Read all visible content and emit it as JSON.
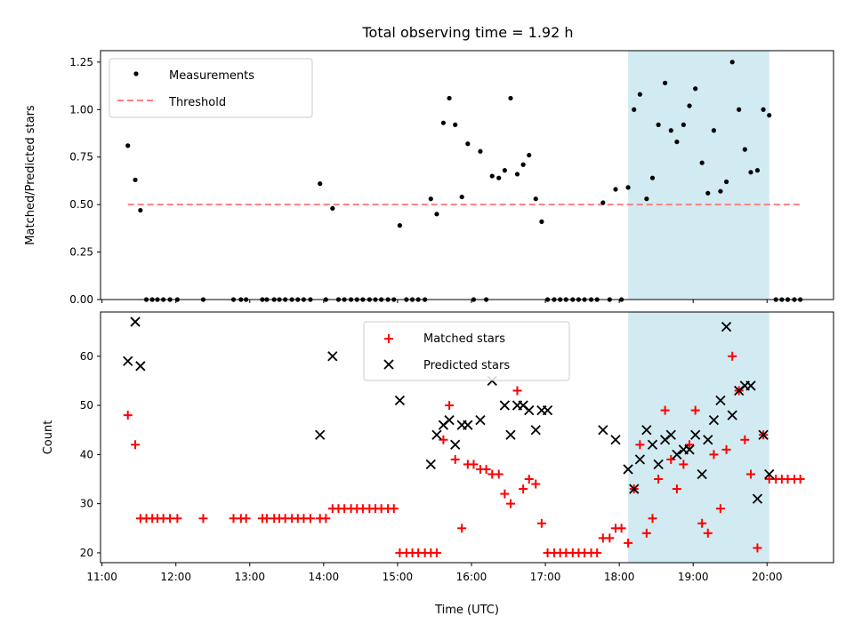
{
  "title": "Total observing time = 1.92 h",
  "colors": {
    "shade": "#add8e6",
    "measurement": "#000000",
    "threshold": "#ff7f7f",
    "matched": "#ff0000",
    "predicted": "#000000"
  },
  "icons": {
    "measurement_marker": "dot",
    "matched_marker": "plus",
    "predicted_marker": "x-cross"
  },
  "chart_data": [
    {
      "type": "scatter",
      "ylabel": "Matched/Predicted stars",
      "xlim": [
        10.98,
        20.9
      ],
      "ylim": [
        0,
        1.31
      ],
      "yticks": [
        0.0,
        0.25,
        0.5,
        0.75,
        1.0,
        1.25
      ],
      "ytick_labels": [
        "0.00",
        "0.25",
        "0.50",
        "0.75",
        "1.00",
        "1.25"
      ],
      "xticks": [
        11,
        12,
        13,
        14,
        15,
        16,
        17,
        18,
        19,
        20
      ],
      "show_xtick_labels": false,
      "legend_position": "upper left",
      "shaded_interval": [
        18.12,
        20.03
      ],
      "threshold": {
        "name": "Threshold",
        "y": 0.5,
        "x_range": [
          11.35,
          20.45
        ],
        "style": "dashed"
      },
      "series": [
        {
          "name": "Measurements",
          "marker": "dot",
          "x": [
            11.35,
            11.45,
            11.52,
            11.6,
            11.68,
            11.75,
            11.83,
            11.92,
            12.02,
            12.37,
            12.78,
            12.88,
            12.95,
            13.17,
            13.23,
            13.33,
            13.4,
            13.48,
            13.57,
            13.65,
            13.73,
            13.82,
            13.95,
            14.03,
            14.12,
            14.2,
            14.28,
            14.37,
            14.45,
            14.53,
            14.62,
            14.7,
            14.78,
            14.87,
            14.95,
            15.03,
            15.12,
            15.2,
            15.28,
            15.37,
            15.45,
            15.53,
            15.62,
            15.7,
            15.78,
            15.87,
            15.95,
            16.03,
            16.12,
            16.2,
            16.28,
            16.37,
            16.45,
            16.53,
            16.62,
            16.7,
            16.78,
            16.87,
            16.95,
            17.03,
            17.12,
            17.2,
            17.28,
            17.37,
            17.45,
            17.53,
            17.62,
            17.7,
            17.78,
            17.87,
            17.95,
            18.03,
            18.12,
            18.2,
            18.28,
            18.37,
            18.45,
            18.53,
            18.62,
            18.7,
            18.78,
            18.87,
            18.95,
            19.03,
            19.12,
            19.2,
            19.28,
            19.37,
            19.45,
            19.53,
            19.62,
            19.7,
            19.78,
            19.87,
            19.95,
            20.03,
            20.12,
            20.2,
            20.28,
            20.37,
            20.45
          ],
          "y": [
            0.81,
            0.63,
            0.47,
            0.0,
            0.0,
            0.0,
            0.0,
            0.0,
            0.0,
            0.0,
            0.0,
            0.0,
            0.0,
            0.0,
            0.0,
            0.0,
            0.0,
            0.0,
            0.0,
            0.0,
            0.0,
            0.0,
            0.61,
            0.0,
            0.48,
            0.0,
            0.0,
            0.0,
            0.0,
            0.0,
            0.0,
            0.0,
            0.0,
            0.0,
            0.0,
            0.39,
            0.0,
            0.0,
            0.0,
            0.0,
            0.53,
            0.45,
            0.93,
            1.06,
            0.92,
            0.54,
            0.82,
            0.0,
            0.78,
            0.0,
            0.65,
            0.64,
            0.68,
            1.06,
            0.66,
            0.71,
            0.76,
            0.53,
            0.41,
            0.0,
            0.0,
            0.0,
            0.0,
            0.0,
            0.0,
            0.0,
            0.0,
            0.0,
            0.51,
            0.0,
            0.58,
            0.0,
            0.59,
            1.0,
            1.08,
            0.53,
            0.64,
            0.92,
            1.14,
            0.89,
            0.83,
            0.92,
            1.02,
            1.11,
            0.72,
            0.56,
            0.89,
            0.57,
            0.62,
            1.25,
            1.0,
            0.79,
            0.67,
            0.68,
            1.0,
            0.97,
            0.0,
            0.0,
            0.0,
            0.0,
            0.0
          ]
        }
      ]
    },
    {
      "type": "scatter",
      "xlabel": "Time (UTC)",
      "ylabel": "Count",
      "xlim": [
        10.98,
        20.9
      ],
      "ylim": [
        18,
        69
      ],
      "yticks": [
        20,
        30,
        40,
        50,
        60
      ],
      "ytick_labels": [
        "20",
        "30",
        "40",
        "50",
        "60"
      ],
      "xticks": [
        11,
        12,
        13,
        14,
        15,
        16,
        17,
        18,
        19,
        20
      ],
      "xtick_labels": [
        "11:00",
        "12:00",
        "13:00",
        "14:00",
        "15:00",
        "16:00",
        "17:00",
        "18:00",
        "19:00",
        "20:00"
      ],
      "legend_position": "upper center",
      "shaded_interval": [
        18.12,
        20.03
      ],
      "series": [
        {
          "name": "Matched stars",
          "marker": "plus",
          "x": [
            11.35,
            11.45,
            11.52,
            11.6,
            11.68,
            11.75,
            11.83,
            11.92,
            12.02,
            12.37,
            12.78,
            12.88,
            12.95,
            13.17,
            13.23,
            13.33,
            13.4,
            13.48,
            13.57,
            13.65,
            13.73,
            13.82,
            13.95,
            14.03,
            14.12,
            14.2,
            14.28,
            14.37,
            14.45,
            14.53,
            14.62,
            14.7,
            14.78,
            14.87,
            14.95,
            15.03,
            15.12,
            15.2,
            15.28,
            15.37,
            15.45,
            15.53,
            15.62,
            15.7,
            15.78,
            15.87,
            15.95,
            16.03,
            16.12,
            16.2,
            16.28,
            16.37,
            16.45,
            16.53,
            16.62,
            16.7,
            16.78,
            16.87,
            16.95,
            17.03,
            17.12,
            17.2,
            17.28,
            17.37,
            17.45,
            17.53,
            17.62,
            17.7,
            17.78,
            17.87,
            17.95,
            18.03,
            18.12,
            18.2,
            18.28,
            18.37,
            18.45,
            18.53,
            18.62,
            18.7,
            18.78,
            18.87,
            18.95,
            19.03,
            19.12,
            19.2,
            19.28,
            19.37,
            19.45,
            19.53,
            19.62,
            19.7,
            19.78,
            19.87,
            19.95,
            20.03,
            20.12,
            20.2,
            20.28,
            20.37,
            20.45
          ],
          "y": [
            48,
            42,
            27,
            27,
            27,
            27,
            27,
            27,
            27,
            27,
            27,
            27,
            27,
            27,
            27,
            27,
            27,
            27,
            27,
            27,
            27,
            27,
            27,
            27,
            29,
            29,
            29,
            29,
            29,
            29,
            29,
            29,
            29,
            29,
            29,
            20,
            20,
            20,
            20,
            20,
            20,
            20,
            43,
            50,
            39,
            25,
            38,
            38,
            37,
            37,
            36,
            36,
            32,
            30,
            53,
            33,
            35,
            34,
            26,
            20,
            20,
            20,
            20,
            20,
            20,
            20,
            20,
            20,
            23,
            23,
            25,
            25,
            22,
            33,
            42,
            24,
            27,
            35,
            49,
            39,
            33,
            38,
            42,
            49,
            26,
            24,
            40,
            29,
            41,
            60,
            53,
            43,
            36,
            21,
            44,
            35,
            35,
            35,
            35,
            35,
            35
          ]
        },
        {
          "name": "Predicted stars",
          "marker": "x",
          "x": [
            11.35,
            11.45,
            11.52,
            13.95,
            14.12,
            15.03,
            15.45,
            15.53,
            15.62,
            15.7,
            15.78,
            15.87,
            15.95,
            16.12,
            16.28,
            16.45,
            16.53,
            16.62,
            16.7,
            16.78,
            16.87,
            16.95,
            17.03,
            17.78,
            17.95,
            18.12,
            18.2,
            18.28,
            18.37,
            18.45,
            18.53,
            18.62,
            18.7,
            18.78,
            18.87,
            18.95,
            19.03,
            19.12,
            19.2,
            19.28,
            19.37,
            19.45,
            19.53,
            19.62,
            19.7,
            19.78,
            19.87,
            19.95,
            20.03
          ],
          "y": [
            59,
            67,
            58,
            44,
            60,
            51,
            38,
            44,
            46,
            47,
            42,
            46,
            46,
            47,
            55,
            50,
            44,
            50,
            50,
            49,
            45,
            49,
            49,
            45,
            43,
            37,
            33,
            39,
            45,
            42,
            38,
            43,
            44,
            40,
            41,
            41,
            44,
            36,
            43,
            47,
            51,
            66,
            48,
            53,
            54,
            54,
            31,
            44,
            36
          ]
        }
      ]
    }
  ]
}
